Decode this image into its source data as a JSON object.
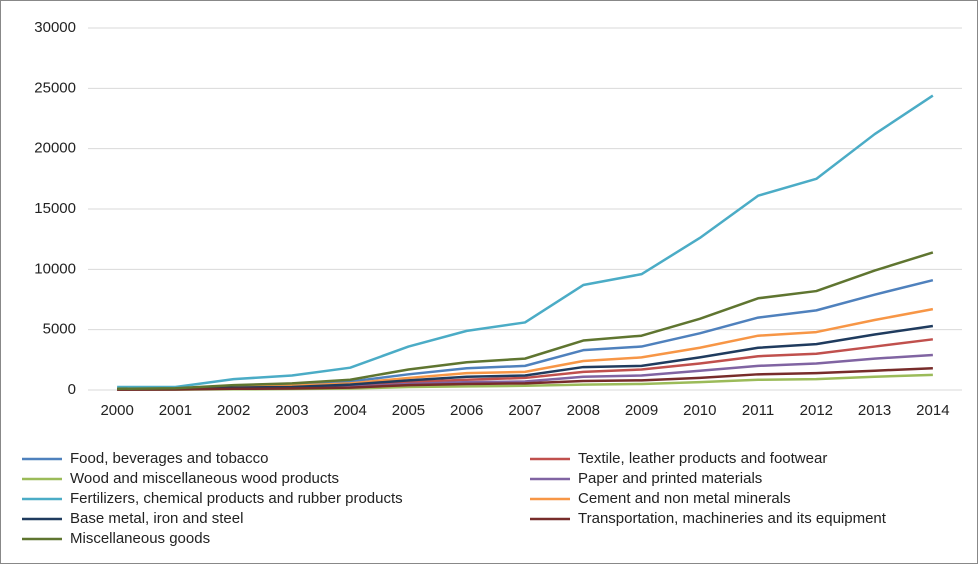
{
  "chart_data": {
    "type": "line",
    "categories": [
      "2000",
      "2001",
      "2002",
      "2003",
      "2004",
      "2005",
      "2006",
      "2007",
      "2008",
      "2009",
      "2010",
      "2011",
      "2012",
      "2013",
      "2014"
    ],
    "series": [
      {
        "name": "Food, beverages and tobacco",
        "color": "#4f81bd",
        "values": [
          100,
          120,
          300,
          400,
          700,
          1300,
          1800,
          2000,
          3300,
          3600,
          4700,
          6000,
          6600,
          7900,
          9100
        ]
      },
      {
        "name": "Textile, leather products and footwear",
        "color": "#c0504d",
        "values": [
          50,
          70,
          150,
          200,
          350,
          650,
          850,
          1000,
          1500,
          1700,
          2200,
          2800,
          3000,
          3600,
          4200
        ]
      },
      {
        "name": "Wood and miscellaneous wood products",
        "color": "#9bbb59",
        "values": [
          20,
          30,
          60,
          80,
          120,
          250,
          300,
          350,
          450,
          500,
          650,
          850,
          900,
          1100,
          1250
        ]
      },
      {
        "name": "Paper and printed materials",
        "color": "#8064a2",
        "values": [
          40,
          50,
          120,
          150,
          250,
          500,
          650,
          700,
          1100,
          1200,
          1600,
          2000,
          2200,
          2600,
          2900
        ]
      },
      {
        "name": "Fertilizers, chemical products and rubber products",
        "color": "#4bacc6",
        "values": [
          250,
          250,
          900,
          1200,
          1850,
          3600,
          4900,
          5600,
          8700,
          9600,
          12600,
          16100,
          17500,
          21200,
          24400
        ]
      },
      {
        "name": "Cement and non metal minerals",
        "color": "#f79646",
        "values": [
          80,
          100,
          250,
          350,
          550,
          1000,
          1400,
          1500,
          2400,
          2700,
          3500,
          4500,
          4800,
          5800,
          6700
        ]
      },
      {
        "name": "Base metal, iron and steel",
        "color": "#1f3b5e",
        "values": [
          60,
          80,
          200,
          250,
          450,
          800,
          1100,
          1200,
          1900,
          2000,
          2700,
          3500,
          3800,
          4600,
          5300
        ]
      },
      {
        "name": "Transportation, machineries and its equipment",
        "color": "#772c2a",
        "values": [
          30,
          40,
          100,
          120,
          200,
          400,
          500,
          550,
          750,
          800,
          1000,
          1300,
          1400,
          1600,
          1800
        ]
      },
      {
        "name": "Miscellaneous goods",
        "color": "#5f7530",
        "values": [
          100,
          150,
          400,
          550,
          850,
          1700,
          2300,
          2600,
          4100,
          4500,
          5900,
          7600,
          8200,
          9900,
          11400
        ]
      }
    ],
    "ylim": [
      0,
      30000
    ],
    "yticks": [
      0,
      5000,
      10000,
      15000,
      20000,
      25000,
      30000
    ],
    "grid": true,
    "legend": "bottom"
  }
}
